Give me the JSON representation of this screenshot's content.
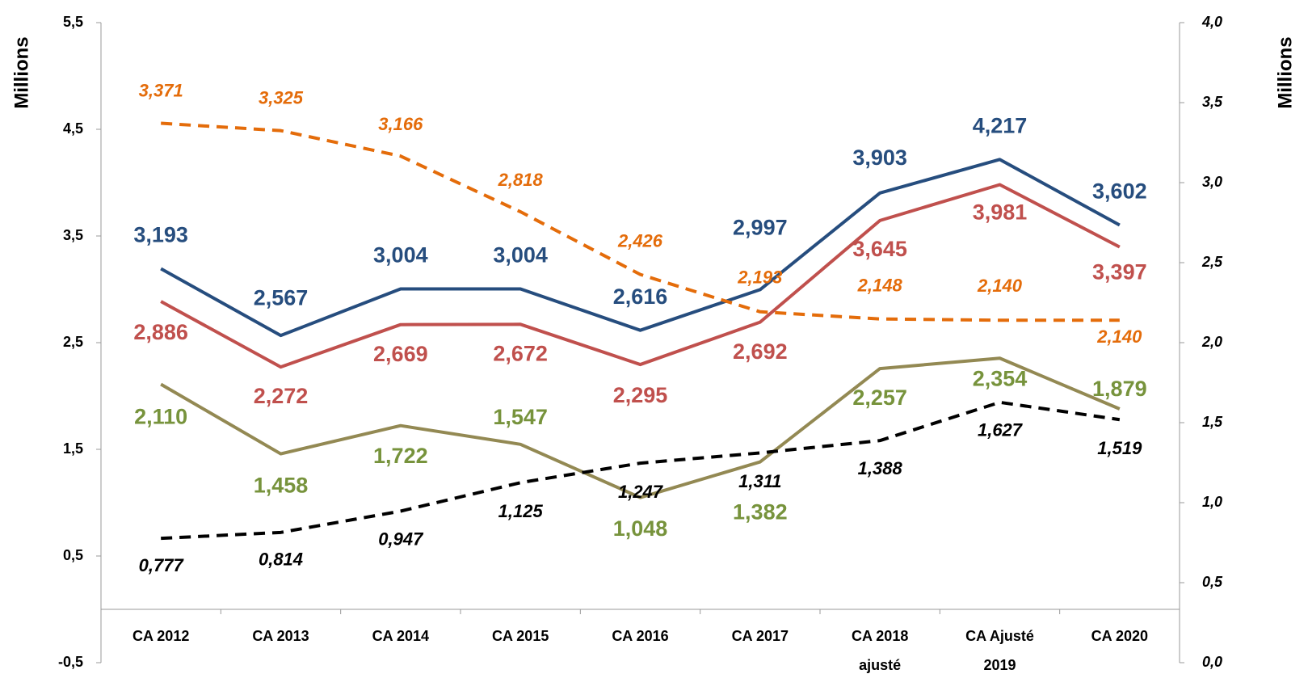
{
  "chart_data": {
    "type": "line",
    "y_label": "Millions",
    "y2_label": "Millions",
    "categories": [
      [
        "CA 2012"
      ],
      [
        "CA 2013"
      ],
      [
        "CA 2014"
      ],
      [
        "CA 2015"
      ],
      [
        "CA 2016"
      ],
      [
        "CA 2017"
      ],
      [
        "CA 2018",
        "ajusté"
      ],
      [
        "CA Ajusté",
        "2019"
      ],
      [
        "CA 2020"
      ]
    ],
    "ylim": [
      -0.5,
      5.5
    ],
    "yticks": [
      {
        "value": -0.5,
        "label": "-0,5"
      },
      {
        "value": 0.5,
        "label": "0,5"
      },
      {
        "value": 1.5,
        "label": "1,5"
      },
      {
        "value": 2.5,
        "label": "2,5"
      },
      {
        "value": 3.5,
        "label": "3,5"
      },
      {
        "value": 4.5,
        "label": "4,5"
      },
      {
        "value": 5.5,
        "label": "5,5"
      }
    ],
    "y2lim": [
      0,
      4
    ],
    "y2ticks": [
      {
        "value": 0,
        "label": "0,0"
      },
      {
        "value": 0.5,
        "label": "0,5"
      },
      {
        "value": 1,
        "label": "1,0"
      },
      {
        "value": 1.5,
        "label": "1,5"
      },
      {
        "value": 2,
        "label": "2,0"
      },
      {
        "value": 2.5,
        "label": "2,5"
      },
      {
        "value": 3,
        "label": "3,0"
      },
      {
        "value": 3.5,
        "label": "3,5"
      },
      {
        "value": 4,
        "label": "4,0"
      }
    ],
    "series": [
      {
        "color": "#264d7e",
        "label_color": "#264d7e",
        "dashed": false,
        "values": [
          3.193,
          2.567,
          3.004,
          3.004,
          2.616,
          2.997,
          3.903,
          4.217,
          3.602
        ],
        "value_labels": [
          "3,193",
          "2,567",
          "3,004",
          "3,004",
          "2,616",
          "2,997",
          "3,903",
          "4,217",
          "3,602"
        ]
      },
      {
        "color": "#c0504d",
        "label_color": "#c0504d",
        "dashed": false,
        "values": [
          2.886,
          2.272,
          2.669,
          2.672,
          2.295,
          2.692,
          3.645,
          3.981,
          3.397
        ],
        "value_labels": [
          "2,886",
          "2,272",
          "2,669",
          "2,672",
          "2,295",
          "2,692",
          "3,645",
          "3,981",
          "3,397"
        ]
      },
      {
        "color": "#938953",
        "label_color": "#77933c",
        "dashed": false,
        "values": [
          2.11,
          1.458,
          1.722,
          1.547,
          1.048,
          1.382,
          2.257,
          2.354,
          1.879
        ],
        "value_labels": [
          "2,110",
          "1,458",
          "1,722",
          "1,547",
          "1,048",
          "1,382",
          "2,257",
          "2,354",
          "1,879"
        ]
      },
      {
        "color": "#e46c0a",
        "label_color": "#e46c0a",
        "dashed": true,
        "axis": "y2",
        "values": [
          3.371,
          3.325,
          3.166,
          2.818,
          2.426,
          2.193,
          2.148,
          2.14,
          2.14
        ],
        "value_labels": [
          "3,371",
          "3,325",
          "3,166",
          "2,818",
          "2,426",
          "2,193",
          "2,148",
          "2,140",
          "2,140"
        ]
      },
      {
        "color": "#000000",
        "label_color": "#000000",
        "dashed": true,
        "axis": "y2",
        "values": [
          0.777,
          0.814,
          0.947,
          1.125,
          1.247,
          1.311,
          1.388,
          1.627,
          1.519
        ],
        "value_labels": [
          "0,777",
          "0,814",
          "0,947",
          "1,125",
          "1,247",
          "1,311",
          "1,388",
          "1,627",
          "1,519"
        ]
      }
    ]
  }
}
